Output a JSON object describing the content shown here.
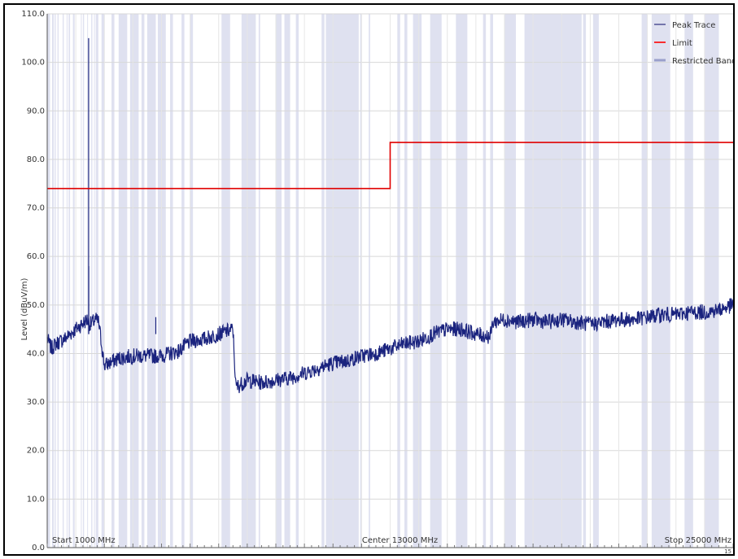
{
  "chart_data": {
    "type": "line",
    "ylabel": "Level (dBuV/m)",
    "ylim": [
      0,
      110
    ],
    "y_ticks": [
      "0.0",
      "10.0",
      "20.0",
      "30.0",
      "40.0",
      "50.0",
      "60.0",
      "70.0",
      "80.0",
      "90.0",
      "100.0",
      "110.0"
    ],
    "xlim_mhz": [
      1000,
      25000
    ],
    "x_labels": {
      "start": "Start 1000 MHz",
      "center": "Center 13000 MHz",
      "stop": "Stop 25000 MHz"
    },
    "corner_label": "15",
    "legend": {
      "placement": "top-right",
      "entries": [
        {
          "name": "Peak Trace",
          "color": "#5a5a9a"
        },
        {
          "name": "Limit",
          "color": "#ff0000"
        },
        {
          "name": "Restricted Bands",
          "color": "#9aa0cc"
        }
      ]
    },
    "series": [
      {
        "name": "Limit",
        "color": "#e00000",
        "points": [
          [
            1000,
            74.0
          ],
          [
            13000,
            74.0
          ],
          [
            13000,
            83.5
          ],
          [
            25000,
            83.5
          ]
        ]
      },
      {
        "name": "Peak Trace",
        "color": "#1a237e",
        "points": [
          [
            1000,
            43
          ],
          [
            1150,
            41
          ],
          [
            1300,
            42
          ],
          [
            1600,
            43
          ],
          [
            1900,
            44.5
          ],
          [
            2100,
            45.5
          ],
          [
            2300,
            46.5
          ],
          [
            2400,
            47
          ],
          [
            2500,
            46
          ],
          [
            2700,
            47
          ],
          [
            2800,
            46.5
          ],
          [
            3000,
            37.5
          ],
          [
            3500,
            39
          ],
          [
            4000,
            39.5
          ],
          [
            5000,
            39.5
          ],
          [
            5600,
            40.5
          ],
          [
            6000,
            42.5
          ],
          [
            6500,
            43
          ],
          [
            7000,
            44
          ],
          [
            7500,
            45
          ],
          [
            7600,
            33
          ],
          [
            8000,
            34.5
          ],
          [
            8500,
            34
          ],
          [
            9000,
            34.5
          ],
          [
            9500,
            35
          ],
          [
            10000,
            36
          ],
          [
            10500,
            37
          ],
          [
            11000,
            38
          ],
          [
            11500,
            38.5
          ],
          [
            12000,
            39.5
          ],
          [
            12500,
            40
          ],
          [
            13000,
            41
          ],
          [
            13500,
            42
          ],
          [
            14000,
            42.5
          ],
          [
            14500,
            44
          ],
          [
            15000,
            45
          ],
          [
            15500,
            45
          ],
          [
            16000,
            44
          ],
          [
            16500,
            43.5
          ],
          [
            16600,
            46.5
          ],
          [
            17000,
            47
          ],
          [
            17500,
            46.5
          ],
          [
            18000,
            47
          ],
          [
            18500,
            46.5
          ],
          [
            19000,
            47
          ],
          [
            19500,
            46.5
          ],
          [
            20000,
            46
          ],
          [
            20500,
            46.5
          ],
          [
            21000,
            47
          ],
          [
            21500,
            47
          ],
          [
            22000,
            47.5
          ],
          [
            22500,
            48
          ],
          [
            23000,
            48
          ],
          [
            23500,
            48.5
          ],
          [
            24000,
            48.5
          ],
          [
            24500,
            49
          ],
          [
            25000,
            50
          ]
        ],
        "spikes": [
          {
            "x_mhz": 2450,
            "peak": 105
          },
          {
            "x_mhz": 2455,
            "peak": 58
          },
          {
            "x_mhz": 4800,
            "peak": 47.5
          }
        ]
      }
    ],
    "restricted_bands_mhz": [
      [
        1000,
        1100
      ],
      [
        1170,
        1230
      ],
      [
        1260,
        1300
      ],
      [
        1360,
        1400
      ],
      [
        1540,
        1580
      ],
      [
        1680,
        1700
      ],
      [
        1750,
        1800
      ],
      [
        1900,
        1960
      ],
      [
        2180,
        2200
      ],
      [
        2250,
        2290
      ],
      [
        2400,
        2420
      ],
      [
        2540,
        2580
      ],
      [
        2640,
        2660
      ],
      [
        2700,
        2790
      ],
      [
        2900,
        3000
      ],
      [
        3250,
        3350
      ],
      [
        3500,
        3800
      ],
      [
        3900,
        4200
      ],
      [
        4300,
        4400
      ],
      [
        4500,
        4800
      ],
      [
        4870,
        5150
      ],
      [
        5300,
        5400
      ],
      [
        5700,
        5800
      ],
      [
        6000,
        6100
      ],
      [
        7100,
        7400
      ],
      [
        7800,
        8300
      ],
      [
        8400,
        8450
      ],
      [
        9000,
        9200
      ],
      [
        9300,
        9500
      ],
      [
        9700,
        9800
      ],
      [
        10600,
        10700
      ],
      [
        10750,
        11900
      ],
      [
        11950,
        12000
      ],
      [
        12250,
        12300
      ],
      [
        13250,
        13350
      ],
      [
        13500,
        13600
      ],
      [
        13800,
        14100
      ],
      [
        14400,
        14800
      ],
      [
        15300,
        15700
      ],
      [
        16250,
        16350
      ],
      [
        16500,
        16600
      ],
      [
        17000,
        17400
      ],
      [
        17700,
        18000
      ],
      [
        18000,
        19700
      ],
      [
        19750,
        19850
      ],
      [
        20100,
        20300
      ],
      [
        21800,
        22000
      ],
      [
        22150,
        22800
      ],
      [
        23300,
        23600
      ],
      [
        24000,
        24500
      ]
    ]
  }
}
